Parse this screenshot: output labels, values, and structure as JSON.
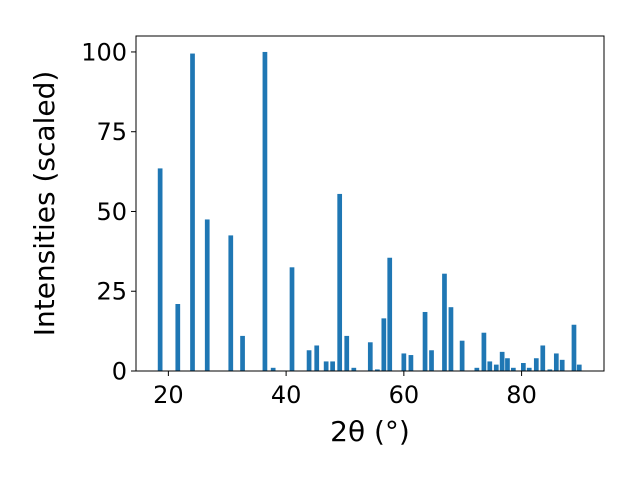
{
  "chart_data": {
    "type": "bar",
    "title": "",
    "xlabel": "2θ (°)",
    "ylabel": "Intensities (scaled)",
    "xlim": [
      14.5,
      94.0
    ],
    "ylim": [
      0,
      105
    ],
    "xticks": [
      20,
      40,
      60,
      80
    ],
    "yticks": [
      0,
      25,
      50,
      75,
      100
    ],
    "grid": false,
    "legend": "none",
    "bar_width": 0.8,
    "bar_color": "#1f77b4",
    "x": [
      18.6,
      21.6,
      24.1,
      26.6,
      30.6,
      32.6,
      36.4,
      37.8,
      41.0,
      43.9,
      45.2,
      46.8,
      47.9,
      49.1,
      50.3,
      51.5,
      54.3,
      55.5,
      56.6,
      57.6,
      60.0,
      61.2,
      63.6,
      64.7,
      66.9,
      68.0,
      69.9,
      72.4,
      73.6,
      74.6,
      75.7,
      76.7,
      77.6,
      78.6,
      80.3,
      81.3,
      82.5,
      83.6,
      84.8,
      85.9,
      86.9,
      88.9,
      89.8
    ],
    "values": [
      63.5,
      21.0,
      99.5,
      47.5,
      42.5,
      11.0,
      100.0,
      1.0,
      32.5,
      6.5,
      8.0,
      3.0,
      3.0,
      55.5,
      11.0,
      1.0,
      9.0,
      0.5,
      16.5,
      35.5,
      5.5,
      5.0,
      18.5,
      6.5,
      30.5,
      20.0,
      9.5,
      1.0,
      12.0,
      3.0,
      2.0,
      6.0,
      4.0,
      1.0,
      2.5,
      1.0,
      4.0,
      8.0,
      0.5,
      5.5,
      3.5,
      14.5,
      2.0
    ]
  }
}
